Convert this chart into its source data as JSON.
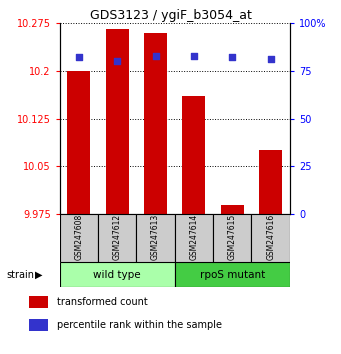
{
  "title": "GDS3123 / ygiF_b3054_at",
  "samples": [
    "GSM247608",
    "GSM247612",
    "GSM247613",
    "GSM247614",
    "GSM247615",
    "GSM247616"
  ],
  "transformed_counts": [
    10.2,
    10.265,
    10.26,
    10.16,
    9.99,
    10.075
  ],
  "percentile_ranks": [
    82,
    80,
    83,
    83,
    82,
    81
  ],
  "ylim_left": [
    9.975,
    10.275
  ],
  "ylim_right": [
    0,
    100
  ],
  "yticks_left": [
    9.975,
    10.05,
    10.125,
    10.2,
    10.275
  ],
  "yticks_right": [
    0,
    25,
    50,
    75,
    100
  ],
  "bar_color": "#CC0000",
  "dot_color": "#3333CC",
  "bar_bottom": 9.975,
  "wild_type_color": "#AAFFAA",
  "rpos_mutant_color": "#44CC44",
  "sample_box_color": "#CCCCCC",
  "legend_bar_label": "transformed count",
  "legend_dot_label": "percentile rank within the sample",
  "n_wild": 3,
  "n_mutant": 3
}
